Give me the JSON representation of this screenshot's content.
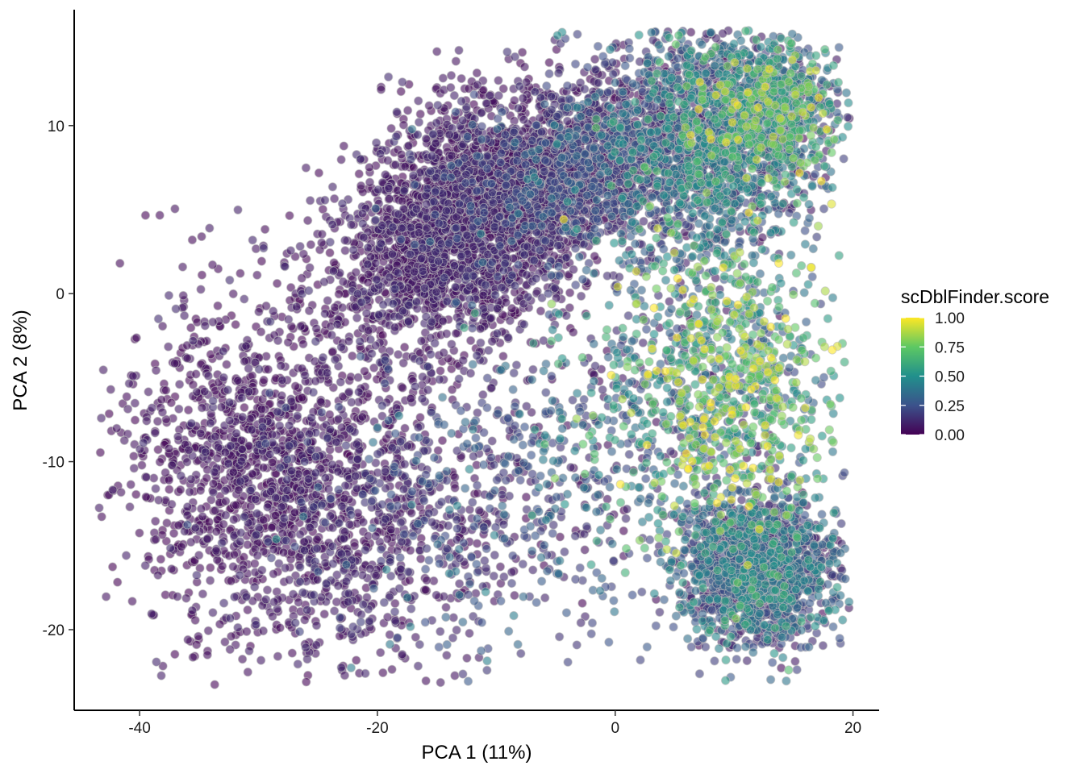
{
  "chart_data": {
    "type": "scatter",
    "title": "",
    "xlabel": "PCA 1 (11%)",
    "ylabel": "PCA 2 (8%)",
    "xlim": [
      -45.5,
      22.2
    ],
    "ylim": [
      -24.8,
      16.9
    ],
    "x_ticks": [
      -40,
      -20,
      0,
      20
    ],
    "y_ticks": [
      -20,
      -10,
      0,
      10
    ],
    "x_tick_labels": [
      "-40",
      "-20",
      "0",
      "20"
    ],
    "y_tick_labels": [
      "-20",
      "-10",
      "0",
      "10"
    ],
    "grid": false,
    "color_variable": "scDblFinder.score",
    "colorbar": {
      "title": "scDblFinder.score",
      "range": [
        0,
        1
      ],
      "ticks": [
        0,
        0.25,
        0.5,
        0.75,
        1
      ],
      "tick_labels": [
        "0.00",
        "0.25",
        "0.50",
        "0.75",
        "1.00"
      ],
      "palette": [
        "#440154",
        "#3b528b",
        "#21908c",
        "#5dc863",
        "#fde725"
      ],
      "position": "right"
    },
    "point_style": {
      "alpha": 0.6,
      "stroke": "#bdbdbd"
    },
    "clusters": [
      {
        "center": [
          -13,
          4
        ],
        "spread": [
          5.5,
          3.5
        ],
        "rotation_deg": 22,
        "n": 2600,
        "score_mean": 0.05,
        "score_sd": 0.05
      },
      {
        "center": [
          -3,
          7.5
        ],
        "spread": [
          5,
          2.6
        ],
        "rotation_deg": 16,
        "n": 1400,
        "score_mean": 0.12,
        "score_sd": 0.12
      },
      {
        "center": [
          8,
          9
        ],
        "spread": [
          4.5,
          3.5
        ],
        "rotation_deg": 10,
        "n": 1600,
        "score_mean": 0.3,
        "score_sd": 0.2
      },
      {
        "center": [
          13,
          11
        ],
        "spread": [
          3,
          2
        ],
        "rotation_deg": 0,
        "n": 700,
        "score_mean": 0.45,
        "score_sd": 0.25
      },
      {
        "center": [
          -31,
          -10
        ],
        "spread": [
          5.5,
          5
        ],
        "rotation_deg": 0,
        "n": 1200,
        "score_mean": 0.03,
        "score_sd": 0.04
      },
      {
        "center": [
          -22,
          -14
        ],
        "spread": [
          5,
          4.5
        ],
        "rotation_deg": 0,
        "n": 700,
        "score_mean": 0.06,
        "score_sd": 0.06
      },
      {
        "center": [
          -10,
          -12
        ],
        "spread": [
          7,
          5
        ],
        "rotation_deg": 0,
        "n": 600,
        "score_mean": 0.15,
        "score_sd": 0.15
      },
      {
        "center": [
          12,
          -16.5
        ],
        "spread": [
          3.2,
          2.2
        ],
        "rotation_deg": 0,
        "n": 1600,
        "score_mean": 0.25,
        "score_sd": 0.17
      },
      {
        "center": [
          10,
          -6
        ],
        "spread": [
          4,
          4.5
        ],
        "rotation_deg": 0,
        "n": 900,
        "score_mean": 0.6,
        "score_sd": 0.28
      },
      {
        "center": [
          2,
          -6
        ],
        "spread": [
          5,
          5
        ],
        "rotation_deg": 0,
        "n": 350,
        "score_mean": 0.35,
        "score_sd": 0.25
      }
    ]
  }
}
